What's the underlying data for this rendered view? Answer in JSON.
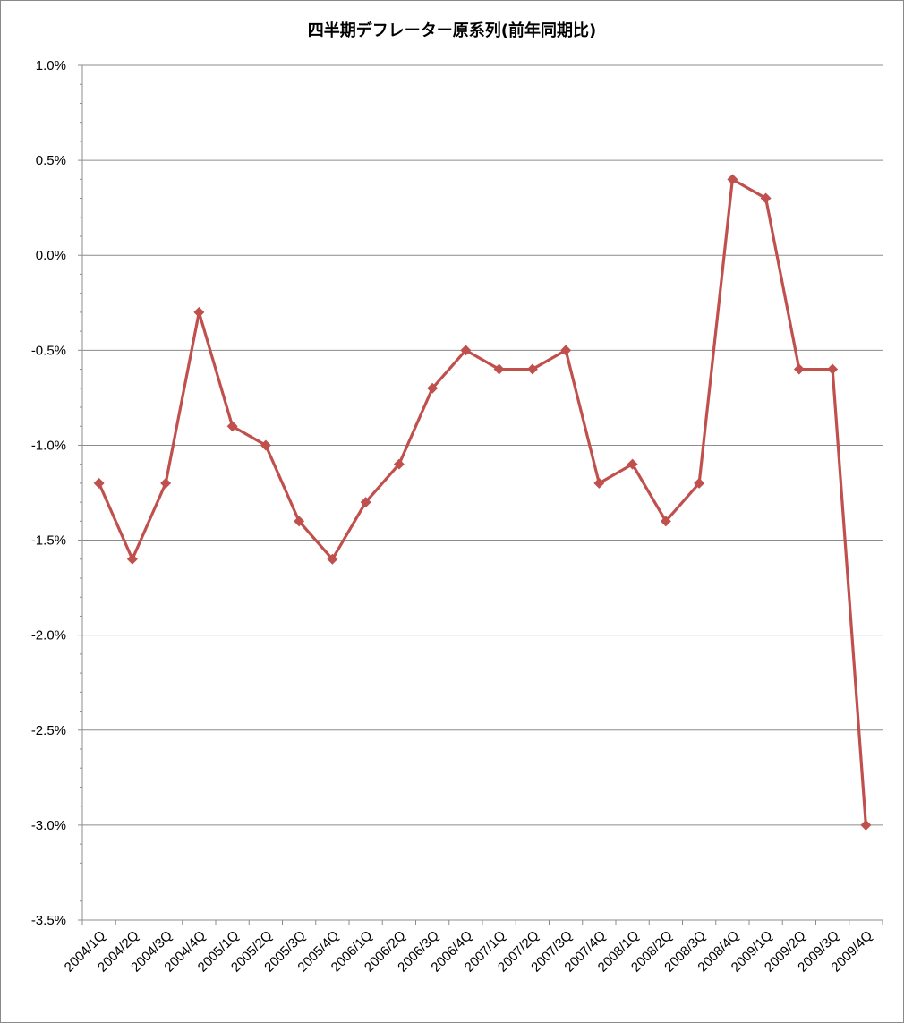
{
  "chart_data": {
    "type": "line",
    "title": "四半期デフレーター原系列(前年同期比)",
    "xlabel": "",
    "ylabel": "",
    "categories": [
      "2004/1Q",
      "2004/2Q",
      "2004/3Q",
      "2004/4Q",
      "2005/1Q",
      "2005/2Q",
      "2005/3Q",
      "2005/4Q",
      "2006/1Q",
      "2006/2Q",
      "2006/3Q",
      "2006/4Q",
      "2007/1Q",
      "2007/2Q",
      "2007/3Q",
      "2007/4Q",
      "2008/1Q",
      "2008/2Q",
      "2008/3Q",
      "2008/4Q",
      "2009/1Q",
      "2009/2Q",
      "2009/3Q",
      "2009/4Q"
    ],
    "series": [
      {
        "values": [
          -1.2,
          -1.6,
          -1.2,
          -0.3,
          -0.9,
          -1.0,
          -1.4,
          -1.6,
          -1.3,
          -1.1,
          -0.7,
          -0.5,
          -0.6,
          -0.6,
          -0.5,
          -1.2,
          -1.1,
          -1.4,
          -1.2,
          0.4,
          0.3,
          -0.6,
          -0.6,
          -3.0
        ],
        "color": "#c0504d",
        "marker": "diamond"
      }
    ],
    "ylim": [
      -3.5,
      1.0
    ],
    "yticks": [
      "1.0%",
      "0.5%",
      "0.0%",
      "-0.5%",
      "-1.0%",
      "-1.5%",
      "-2.0%",
      "-2.5%",
      "-3.0%",
      "-3.5%"
    ],
    "grid": true,
    "legend": "none",
    "gridColor": "#8c8c8c",
    "axisColor": "#8c8c8c"
  }
}
